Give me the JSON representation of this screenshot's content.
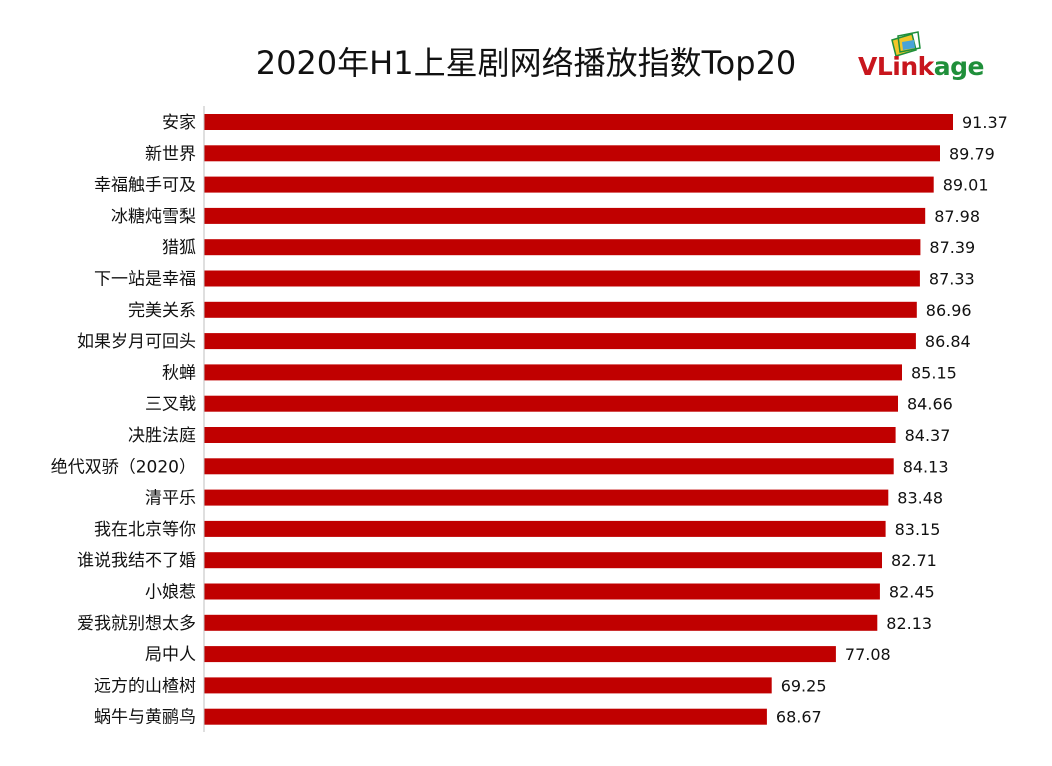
{
  "chart_data": {
    "type": "bar",
    "orientation": "horizontal",
    "title": "2020年H1上星剧网络播放指数Top20",
    "categories": [
      "安家",
      "新世界",
      "幸福触手可及",
      "冰糖炖雪梨",
      "猎狐",
      "下一站是幸福",
      "完美关系",
      "如果岁月可回头",
      "秋蝉",
      "三叉戟",
      "决胜法庭",
      "绝代双骄（2020）",
      "清平乐",
      "我在北京等你",
      "谁说我结不了婚",
      "小娘惹",
      "爱我就别想太多",
      "局中人",
      "远方的山楂树",
      "蜗牛与黄鹂鸟"
    ],
    "values": [
      91.37,
      89.79,
      89.01,
      87.98,
      87.39,
      87.33,
      86.96,
      86.84,
      85.15,
      84.66,
      84.37,
      84.13,
      83.48,
      83.15,
      82.71,
      82.45,
      82.13,
      77.08,
      69.25,
      68.67
    ],
    "value_labels": [
      "91.37",
      "89.79",
      "89.01",
      "87.98",
      "87.39",
      "87.33",
      "86.96",
      "86.84",
      "85.15",
      "84.66",
      "84.37",
      "84.13",
      "83.48",
      "83.15",
      "82.71",
      "82.45",
      "82.13",
      "77.08",
      "69.25",
      "68.67"
    ],
    "xlim": [
      0,
      100
    ],
    "grid": false,
    "bar_color": "#c00000",
    "axis_color": "#bfbfbf"
  },
  "logo": {
    "part1": "VLink",
    "part2": "age",
    "color1": "#c8161d",
    "color2": "#1f8f3a"
  }
}
